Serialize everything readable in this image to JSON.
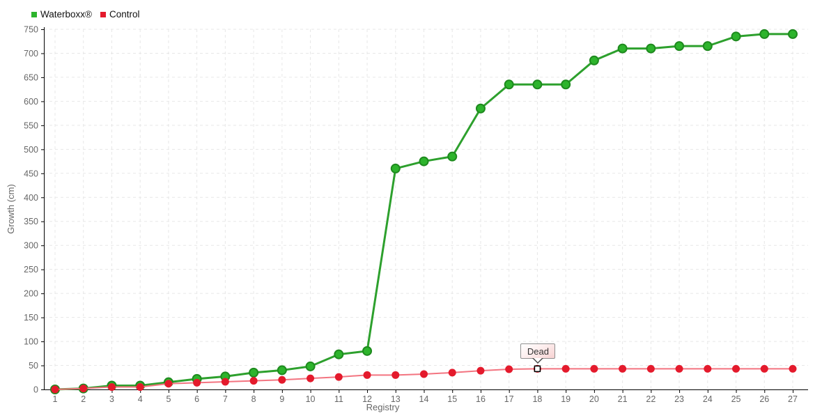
{
  "chart_data": {
    "type": "line",
    "xlabel": "Registry",
    "ylabel": "Growth (cm)",
    "ylim": [
      0,
      750
    ],
    "yticks": [
      0,
      50,
      100,
      150,
      200,
      250,
      300,
      350,
      400,
      450,
      500,
      550,
      600,
      650,
      700,
      750
    ],
    "grid": "dashed",
    "legend_position": "top-left",
    "categories": [
      "1",
      "2",
      "3",
      "4",
      "5",
      "6",
      "7",
      "8",
      "9",
      "10",
      "11",
      "12",
      "13",
      "14",
      "15",
      "16",
      "17",
      "18",
      "19",
      "20",
      "21",
      "22",
      "23",
      "24",
      "25",
      "26",
      "27"
    ],
    "series": [
      {
        "name": "Waterboxx®",
        "line_color": "#2da02d",
        "marker_fill": "#2db42c",
        "marker_stroke": "#1e8a1e",
        "line_width": 3,
        "marker_radius": 6,
        "values": [
          0,
          2,
          8,
          8,
          15,
          22,
          27,
          35,
          40,
          48,
          73,
          80,
          460,
          475,
          485,
          585,
          635,
          635,
          635,
          685,
          710,
          710,
          715,
          715,
          735,
          740,
          740
        ]
      },
      {
        "name": "Control",
        "line_color": "#f37480",
        "marker_fill": "#e41a2c",
        "marker_stroke": "#e41a2c",
        "line_width": 2,
        "marker_radius": 5.5,
        "values": [
          0,
          2,
          5,
          5,
          12,
          14,
          16,
          18,
          20,
          23,
          26,
          30,
          30,
          32,
          35,
          39,
          42,
          43,
          43,
          43,
          43,
          43,
          43,
          43,
          43,
          43,
          43
        ]
      }
    ],
    "annotation": {
      "text": "Dead",
      "series": "Control",
      "category": "18",
      "value": 43,
      "marker_style": "white-square-black-border"
    },
    "colors": {
      "grid": "#e7e7e7",
      "axis": "#000000",
      "tick_text": "#666666",
      "background": "#ffffff"
    }
  },
  "legend": {
    "items": [
      {
        "label": "Waterboxx®",
        "color": "#2db42c"
      },
      {
        "label": "Control",
        "color": "#e41a2c"
      }
    ]
  }
}
